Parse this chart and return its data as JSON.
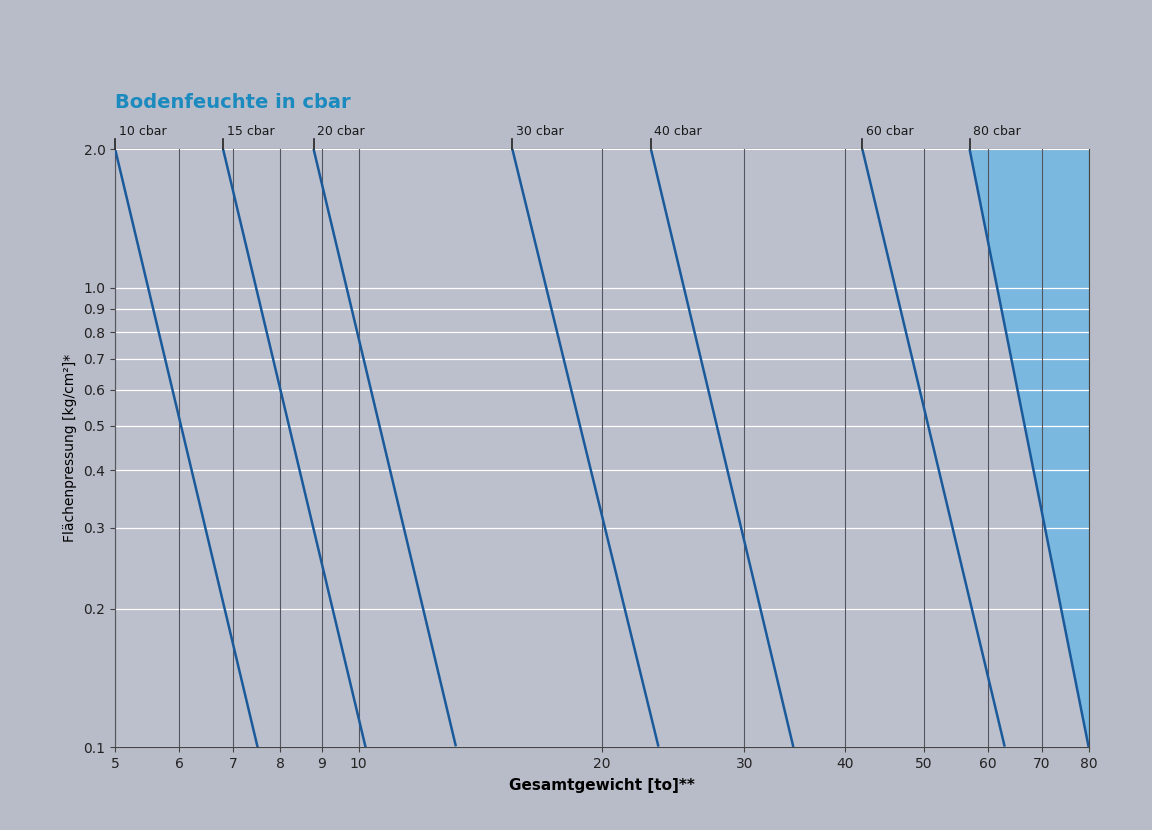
{
  "title": "Bodenfeuchte in cbar",
  "title_color": "#1a8abf",
  "xlabel": "Gesamtgewicht [to]**",
  "ylabel": "Flächenpressung [kg/cm²]*",
  "xmin": 5,
  "xmax": 80,
  "ymin": 0.1,
  "ymax": 2.0,
  "bg_outer": "#b8bcc8",
  "line_color": "#1a5a9a",
  "grid_color_h": "#ffffff",
  "vertical_line_color": "#555560",
  "x_ticks": [
    5,
    6,
    7,
    8,
    9,
    10,
    20,
    30,
    40,
    50,
    60,
    70,
    80
  ],
  "y_ticks": [
    0.1,
    0.2,
    0.3,
    0.4,
    0.5,
    0.6,
    0.7,
    0.8,
    0.9,
    1.0,
    2.0
  ],
  "cbar_lines": [
    {
      "label": "10 cbar",
      "x_at_ymax": 5.0,
      "x_at_ymin": 7.5
    },
    {
      "label": "15 cbar",
      "x_at_ymax": 6.8,
      "x_at_ymin": 10.2
    },
    {
      "label": "20 cbar",
      "x_at_ymax": 8.8,
      "x_at_ymin": 13.2
    },
    {
      "label": "30 cbar",
      "x_at_ymax": 15.5,
      "x_at_ymin": 23.5
    },
    {
      "label": "40 cbar",
      "x_at_ymax": 23.0,
      "x_at_ymin": 34.5
    },
    {
      "label": "60 cbar",
      "x_at_ymax": 42.0,
      "x_at_ymin": 63.0
    },
    {
      "label": "80 cbar",
      "x_at_ymax": 57.0,
      "x_at_ymin": 80.0
    }
  ],
  "vertical_lines": [
    5,
    6,
    7,
    8,
    9,
    10,
    20,
    30,
    40,
    50,
    60,
    70,
    80
  ],
  "band_blue_dark": "#7ab8df",
  "band_blue_light": "#aac8e8",
  "band_gray": "#bcc0cc"
}
